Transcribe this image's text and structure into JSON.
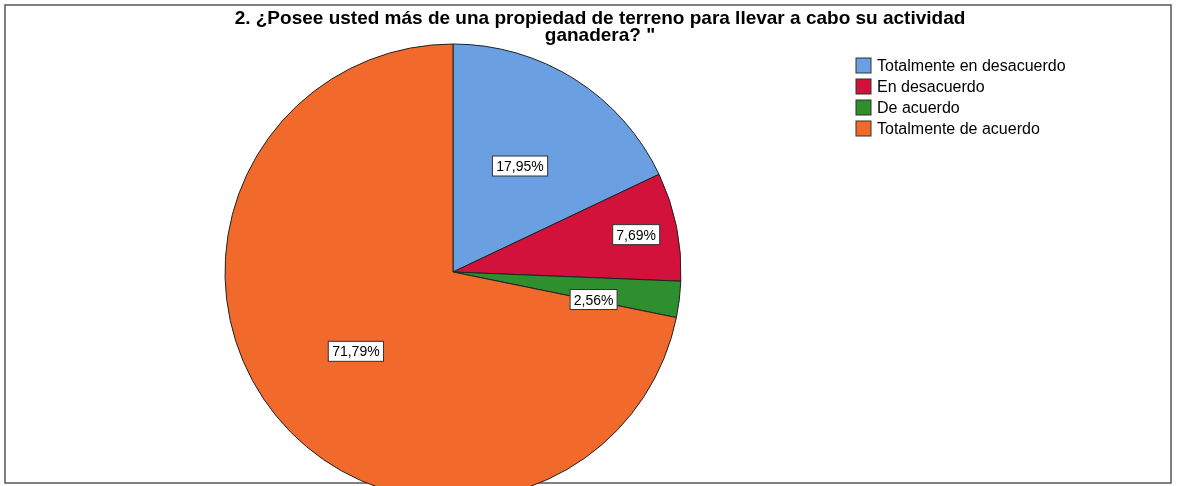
{
  "chart_data": {
    "type": "pie",
    "title": "2. ¿Posee usted más de una propiedad de terreno para llevar a cabo su actividad ganadera? \"",
    "categories": [
      "Totalmente en desacuerdo",
      "En desacuerdo",
      "De acuerdo",
      "Totalmente de acuerdo"
    ],
    "values": [
      17.95,
      7.69,
      2.56,
      71.79
    ],
    "colors": [
      "#6a9fe2",
      "#d3123c",
      "#2f8f2f",
      "#f26a2b"
    ],
    "value_labels": [
      "17,95%",
      "7,69%",
      "2,56%",
      "71,79%"
    ],
    "legend": "top right"
  }
}
